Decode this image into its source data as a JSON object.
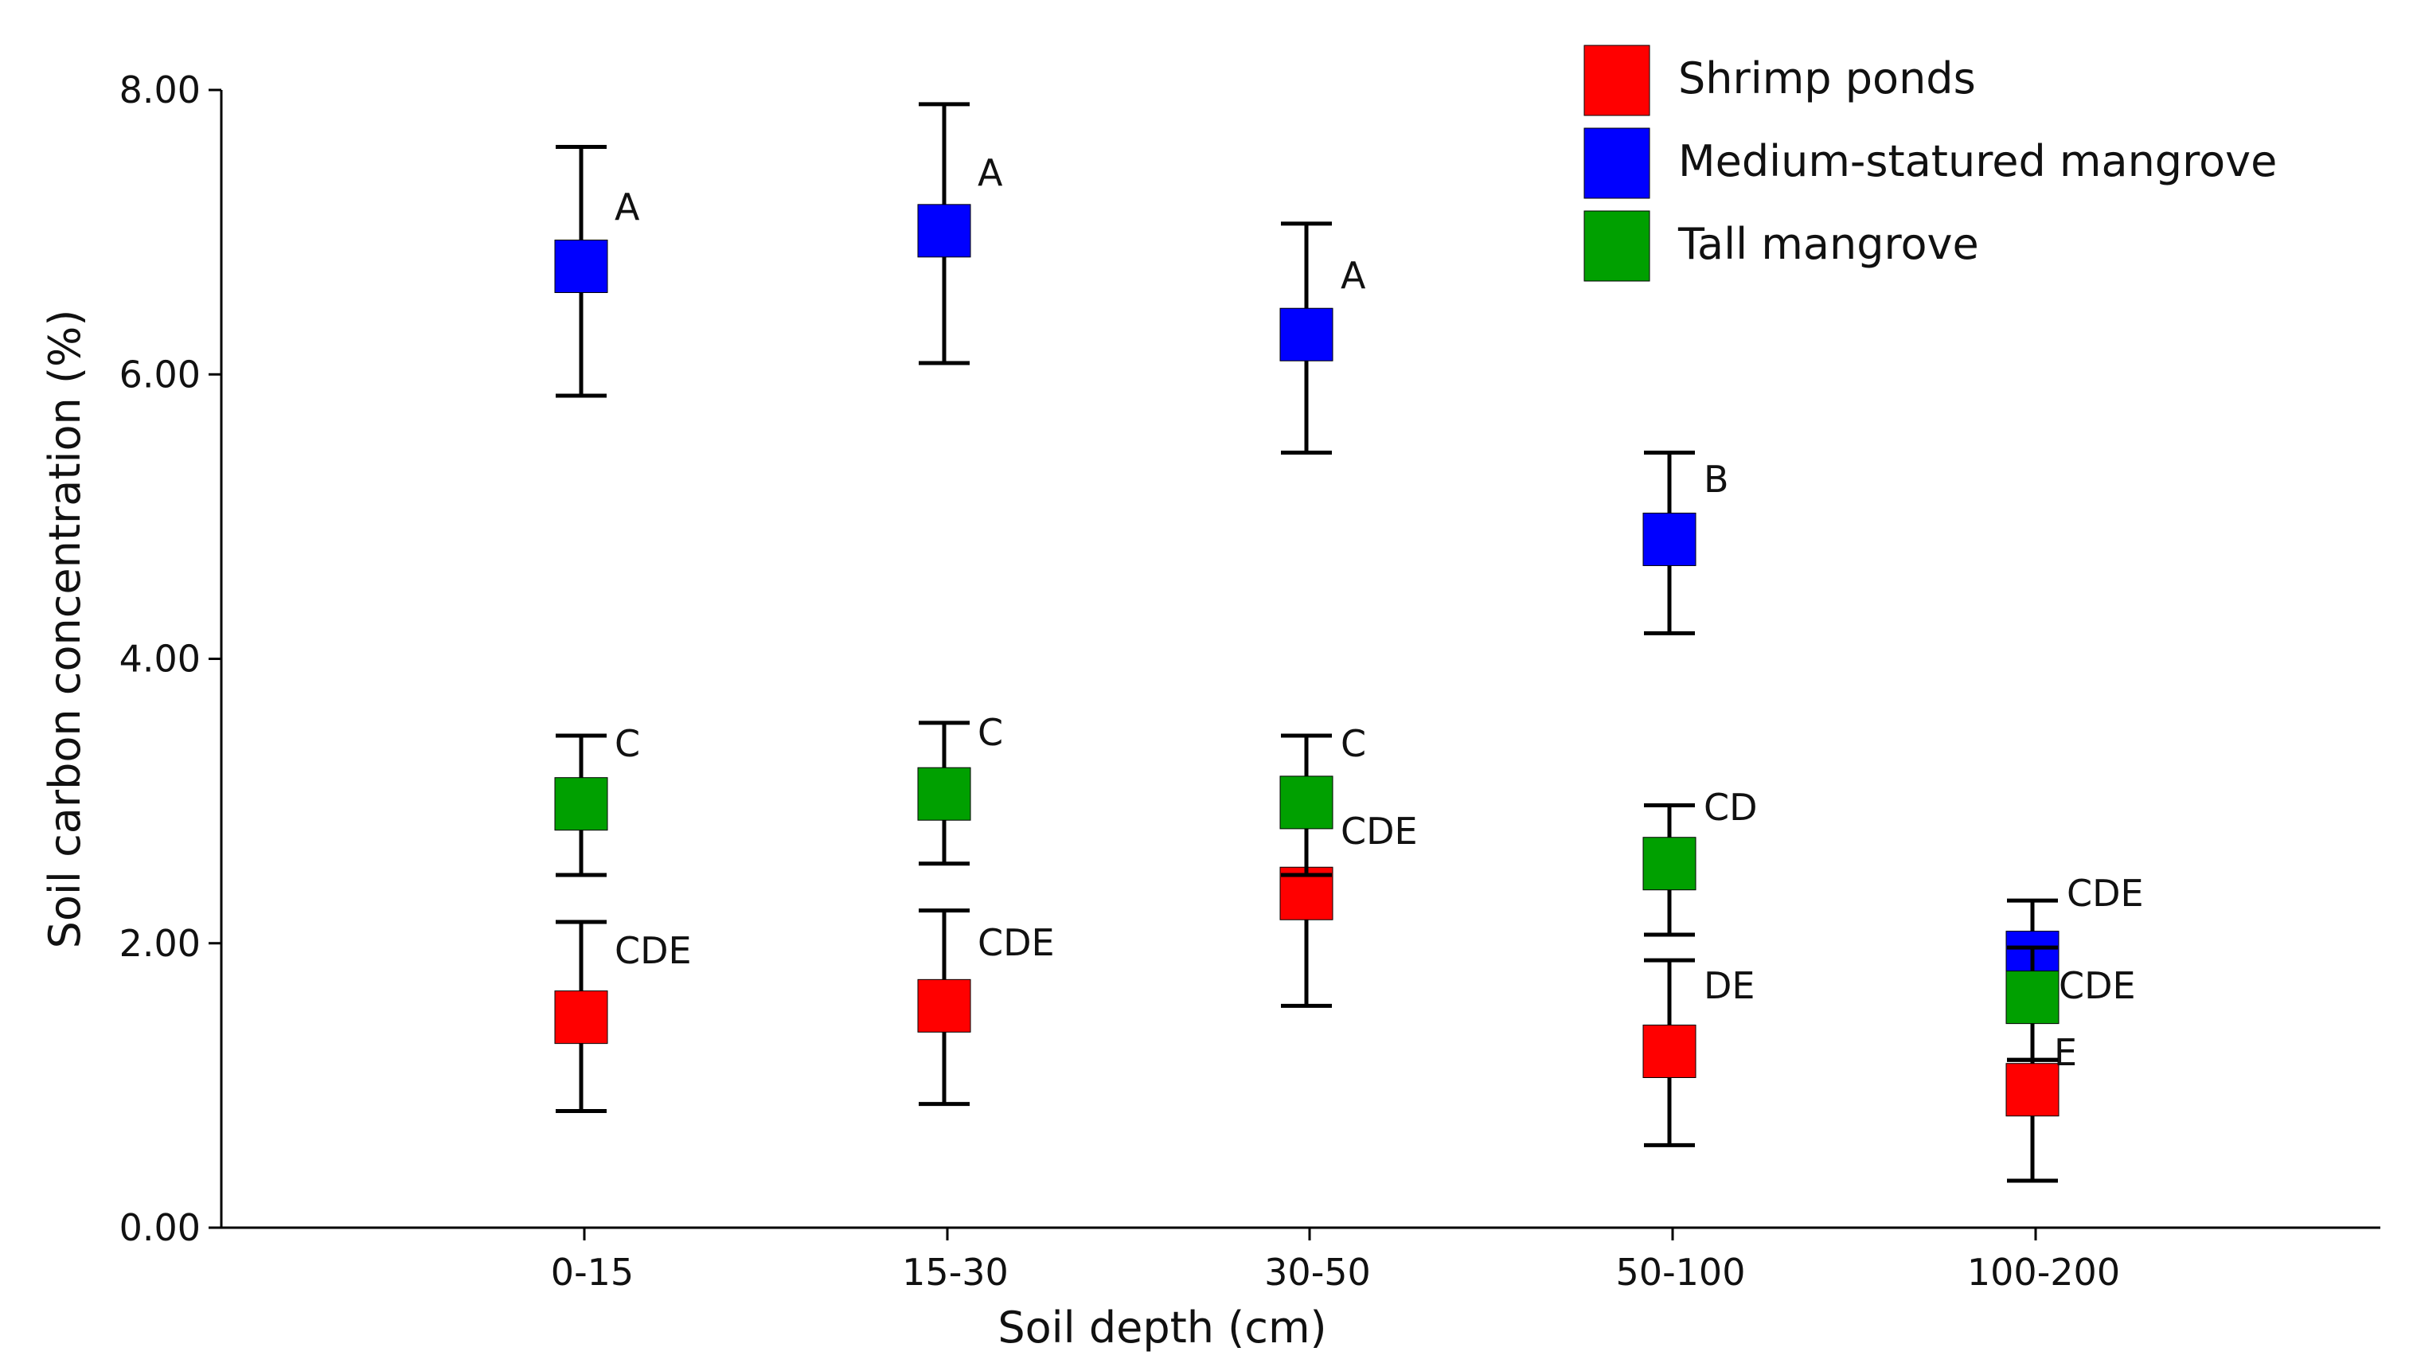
{
  "chart_data": {
    "type": "scatter",
    "title": "",
    "xlabel": "Soil depth (cm)",
    "ylabel": "Soil carbon concentration (%)",
    "ylim": [
      0,
      8
    ],
    "yticks": [
      "0.00",
      "2.00",
      "4.00",
      "6.00",
      "8.00"
    ],
    "categories": [
      "0-15",
      "15-30",
      "30-50",
      "50-100",
      "100-200"
    ],
    "legend_position": "top-right",
    "series": [
      {
        "name": "Shrimp ponds",
        "color": "#ff0000",
        "values": [
          1.48,
          1.56,
          2.35,
          1.24,
          0.97
        ],
        "err_low": [
          0.82,
          0.87,
          1.56,
          0.58,
          0.33
        ],
        "err_high": [
          2.15,
          2.23,
          2.48,
          1.88,
          1.18
        ],
        "labels": [
          "CDE",
          "CDE",
          "CDE",
          "DE",
          "E"
        ]
      },
      {
        "name": "Medium-statured mangrove",
        "color": "#0000ff",
        "values": [
          6.76,
          7.01,
          6.28,
          4.84,
          1.9
        ],
        "err_low": [
          5.85,
          6.08,
          5.45,
          4.18,
          1.52
        ],
        "err_high": [
          7.6,
          7.9,
          7.06,
          5.45,
          2.3
        ],
        "labels": [
          "A",
          "A",
          "A",
          "B",
          "CDE"
        ]
      },
      {
        "name": "Tall mangrove",
        "color": "#00a000",
        "values": [
          2.98,
          3.05,
          2.99,
          2.56,
          1.62
        ],
        "err_low": [
          2.48,
          2.56,
          2.48,
          2.06,
          1.18
        ],
        "err_high": [
          3.46,
          3.55,
          3.46,
          2.97,
          1.97
        ],
        "labels": [
          "C",
          "C",
          "C",
          "CD",
          "CDE"
        ]
      }
    ]
  }
}
